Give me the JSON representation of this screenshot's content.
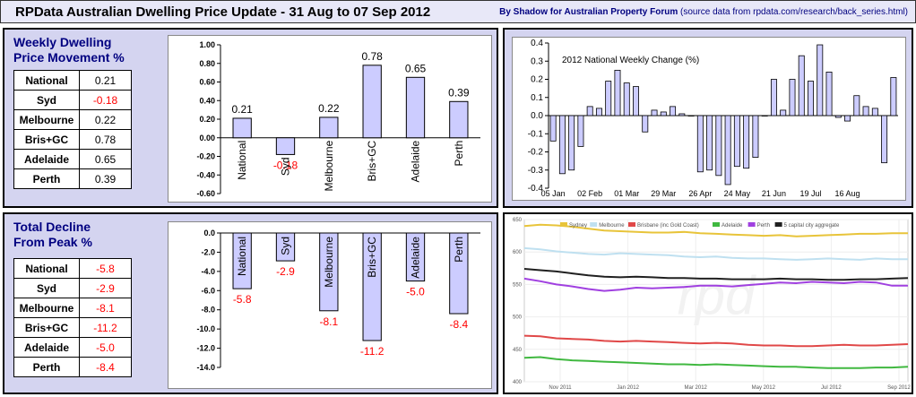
{
  "header": {
    "title": "RPData Australian Dwelling Price Update - 31 Aug to 07 Sep 2012",
    "credit": "By Shadow for Australian Property Forum",
    "source": "(source data from rpdata.com/research/back_series.html)"
  },
  "weekly": {
    "heading1": "Weekly Dwelling",
    "heading2": "Price Movement %",
    "rows": [
      {
        "label": "National",
        "value": "0.21"
      },
      {
        "label": "Syd",
        "value": "-0.18"
      },
      {
        "label": "Melbourne",
        "value": "0.22"
      },
      {
        "label": "Bris+GC",
        "value": "0.78"
      },
      {
        "label": "Adelaide",
        "value": "0.65"
      },
      {
        "label": "Perth",
        "value": "0.39"
      }
    ]
  },
  "decline": {
    "heading1": "Total Decline",
    "heading2": "From Peak %",
    "rows": [
      {
        "label": "National",
        "value": "-5.8"
      },
      {
        "label": "Syd",
        "value": "-2.9"
      },
      {
        "label": "Melbourne",
        "value": "-8.1"
      },
      {
        "label": "Bris+GC",
        "value": "-11.2"
      },
      {
        "label": "Adelaide",
        "value": "-5.0"
      },
      {
        "label": "Perth",
        "value": "-8.4"
      }
    ]
  },
  "colors": {
    "bar_fill": "#ccccff",
    "positive_label": "#000000",
    "negative_label": "#ff0000"
  },
  "chart_data": [
    {
      "id": "weekly-movement",
      "type": "bar",
      "categories": [
        "National",
        "Syd",
        "Melbourne",
        "Bris+GC",
        "Adelaide",
        "Perth"
      ],
      "values": [
        0.21,
        -0.18,
        0.22,
        0.78,
        0.65,
        0.39
      ],
      "labels": [
        "0.21",
        "-0.18",
        "0.22",
        "0.78",
        "0.65",
        "0.39"
      ],
      "ylim": [
        -0.6,
        1.0
      ],
      "yticks": [
        "1.00",
        "0.80",
        "0.60",
        "0.40",
        "0.20",
        "0.00",
        "-0.20",
        "-0.40",
        "-0.60"
      ],
      "ytick_values": [
        1.0,
        0.8,
        0.6,
        0.4,
        0.2,
        0.0,
        -0.2,
        -0.4,
        -0.6
      ]
    },
    {
      "id": "decline-from-peak",
      "type": "bar",
      "categories": [
        "National",
        "Syd",
        "Melbourne",
        "Bris+GC",
        "Adelaide",
        "Perth"
      ],
      "values": [
        -5.8,
        -2.9,
        -8.1,
        -11.2,
        -5.0,
        -8.4
      ],
      "labels": [
        "-5.8",
        "-2.9",
        "-8.1",
        "-11.2",
        "-5.0",
        "-8.4"
      ],
      "ylim": [
        -14,
        0
      ],
      "yticks": [
        "0.0",
        "-2.0",
        "-4.0",
        "-6.0",
        "-8.0",
        "-10.0",
        "-12.0",
        "-14.0"
      ],
      "ytick_values": [
        0,
        -2,
        -4,
        -6,
        -8,
        -10,
        -12,
        -14
      ]
    },
    {
      "id": "national-weekly-change",
      "type": "bar",
      "title": "2012 National Weekly Change (%)",
      "ylim": [
        -0.4,
        0.4
      ],
      "yticks": [
        "0.4",
        "0.3",
        "0.2",
        "0.1",
        "0.0",
        "-0.1",
        "-0.2",
        "-0.3",
        "-0.4"
      ],
      "ytick_values": [
        0.4,
        0.3,
        0.2,
        0.1,
        0.0,
        -0.1,
        -0.2,
        -0.3,
        -0.4
      ],
      "xtick_labels": [
        "05 Jan",
        "02 Feb",
        "01 Mar",
        "29 Mar",
        "26 Apr",
        "24 May",
        "21 Jun",
        "19 Jul",
        "16 Aug"
      ],
      "xtick_indices": [
        0,
        4,
        8,
        12,
        16,
        20,
        24,
        28,
        32
      ],
      "values": [
        -0.14,
        -0.32,
        -0.3,
        -0.17,
        0.05,
        0.04,
        0.19,
        0.25,
        0.18,
        0.16,
        -0.09,
        0.03,
        0.02,
        0.05,
        0.01,
        0.0,
        -0.31,
        -0.3,
        -0.33,
        -0.38,
        -0.28,
        -0.29,
        -0.23,
        0.0,
        0.2,
        0.03,
        0.2,
        0.33,
        0.19,
        0.39,
        0.24,
        -0.01,
        -0.03,
        0.11,
        0.05,
        0.04,
        -0.26,
        0.21
      ]
    },
    {
      "id": "capital-city-indices",
      "type": "line",
      "ylim": [
        400,
        650
      ],
      "yticks": [
        "650",
        "600",
        "550",
        "500",
        "450",
        "400"
      ],
      "ytick_values": [
        650,
        600,
        550,
        500,
        450,
        400
      ],
      "xtick_labels": [
        "Nov 2011",
        "Jan 2012",
        "Mar 2012",
        "May 2012",
        "Jul 2012",
        "Sep 2012"
      ],
      "series": [
        {
          "name": "Sydney",
          "color": "#e8c43a",
          "values": [
            640,
            642,
            641,
            639,
            636,
            633,
            632,
            631,
            630,
            630,
            631,
            629,
            628,
            627,
            626,
            625,
            626,
            624,
            625,
            626,
            627,
            628,
            628,
            629,
            629
          ]
        },
        {
          "name": "Melbourne",
          "color": "#bfe0f0",
          "values": [
            606,
            604,
            601,
            599,
            597,
            596,
            598,
            597,
            596,
            595,
            593,
            592,
            593,
            591,
            590,
            590,
            589,
            588,
            589,
            590,
            589,
            588,
            590,
            589,
            589
          ]
        },
        {
          "name": "Brisbane (inc Gold Coast)",
          "color": "#e04848",
          "values": [
            471,
            470,
            467,
            466,
            465,
            463,
            462,
            463,
            462,
            461,
            460,
            459,
            460,
            459,
            457,
            456,
            456,
            455,
            455,
            456,
            457,
            456,
            456,
            457,
            458
          ]
        },
        {
          "name": "Adelaide",
          "color": "#40b840",
          "values": [
            437,
            438,
            435,
            433,
            432,
            431,
            430,
            429,
            428,
            427,
            427,
            426,
            427,
            426,
            425,
            424,
            423,
            423,
            422,
            421,
            421,
            421,
            422,
            422,
            423
          ]
        },
        {
          "name": "Perth",
          "color": "#a040e0",
          "values": [
            559,
            555,
            550,
            547,
            543,
            540,
            542,
            545,
            544,
            545,
            546,
            548,
            548,
            547,
            549,
            551,
            553,
            552,
            554,
            553,
            552,
            554,
            553,
            548,
            548
          ]
        },
        {
          "name": "5 capital city aggregate",
          "color": "#202020",
          "values": [
            574,
            572,
            570,
            567,
            564,
            562,
            561,
            562,
            561,
            560,
            560,
            559,
            559,
            558,
            558,
            558,
            559,
            558,
            558,
            557,
            557,
            558,
            558,
            559,
            560
          ]
        }
      ]
    }
  ]
}
